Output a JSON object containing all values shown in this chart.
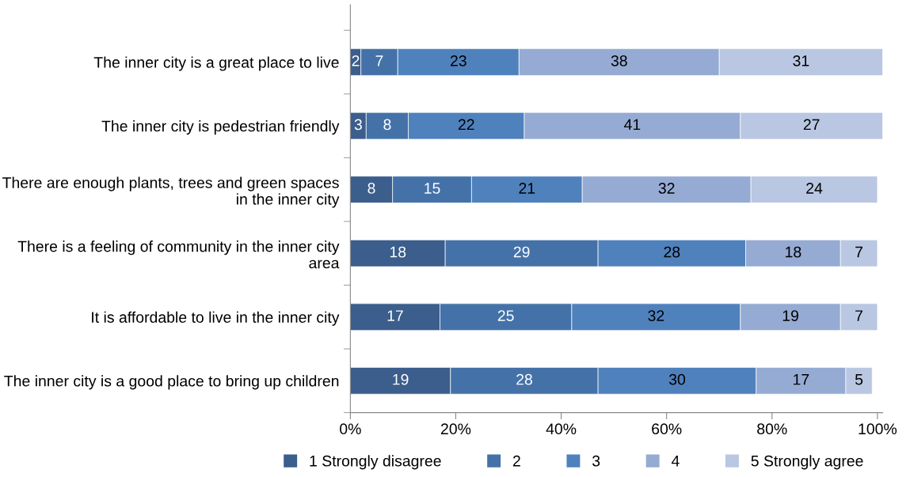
{
  "chart_data": {
    "type": "bar",
    "orientation": "horizontal",
    "stacked": true,
    "categories": [
      "The inner city is a great place to live",
      "The inner city is pedestrian friendly",
      "There are enough plants, trees and green spaces in the inner city",
      "There is a feeling of community in the inner city area",
      "It is affordable to live in the inner city",
      "The inner city is a good place to bring up children"
    ],
    "series": [
      {
        "name": "1 Strongly disagree",
        "color": "#3b5e8c",
        "values": [
          2,
          3,
          8,
          18,
          17,
          19
        ]
      },
      {
        "name": "2",
        "color": "#4472a8",
        "values": [
          7,
          8,
          15,
          29,
          25,
          28
        ]
      },
      {
        "name": "3",
        "color": "#4f81bd",
        "values": [
          23,
          22,
          21,
          28,
          32,
          30
        ]
      },
      {
        "name": "4",
        "color": "#95abd3",
        "values": [
          38,
          41,
          32,
          18,
          19,
          17
        ]
      },
      {
        "name": "5 Strongly agree",
        "color": "#b9c7e2",
        "values": [
          31,
          27,
          24,
          7,
          7,
          5
        ]
      }
    ],
    "xlim": [
      0,
      101
    ],
    "xticks": [
      {
        "value": 0,
        "label": "0%"
      },
      {
        "value": 20,
        "label": "20%"
      },
      {
        "value": 40,
        "label": "40%"
      },
      {
        "value": 60,
        "label": "60%"
      },
      {
        "value": 80,
        "label": "80%"
      },
      {
        "value": 100,
        "label": "100%"
      }
    ],
    "data_labels": true,
    "grid": false,
    "legend": "bottom"
  }
}
